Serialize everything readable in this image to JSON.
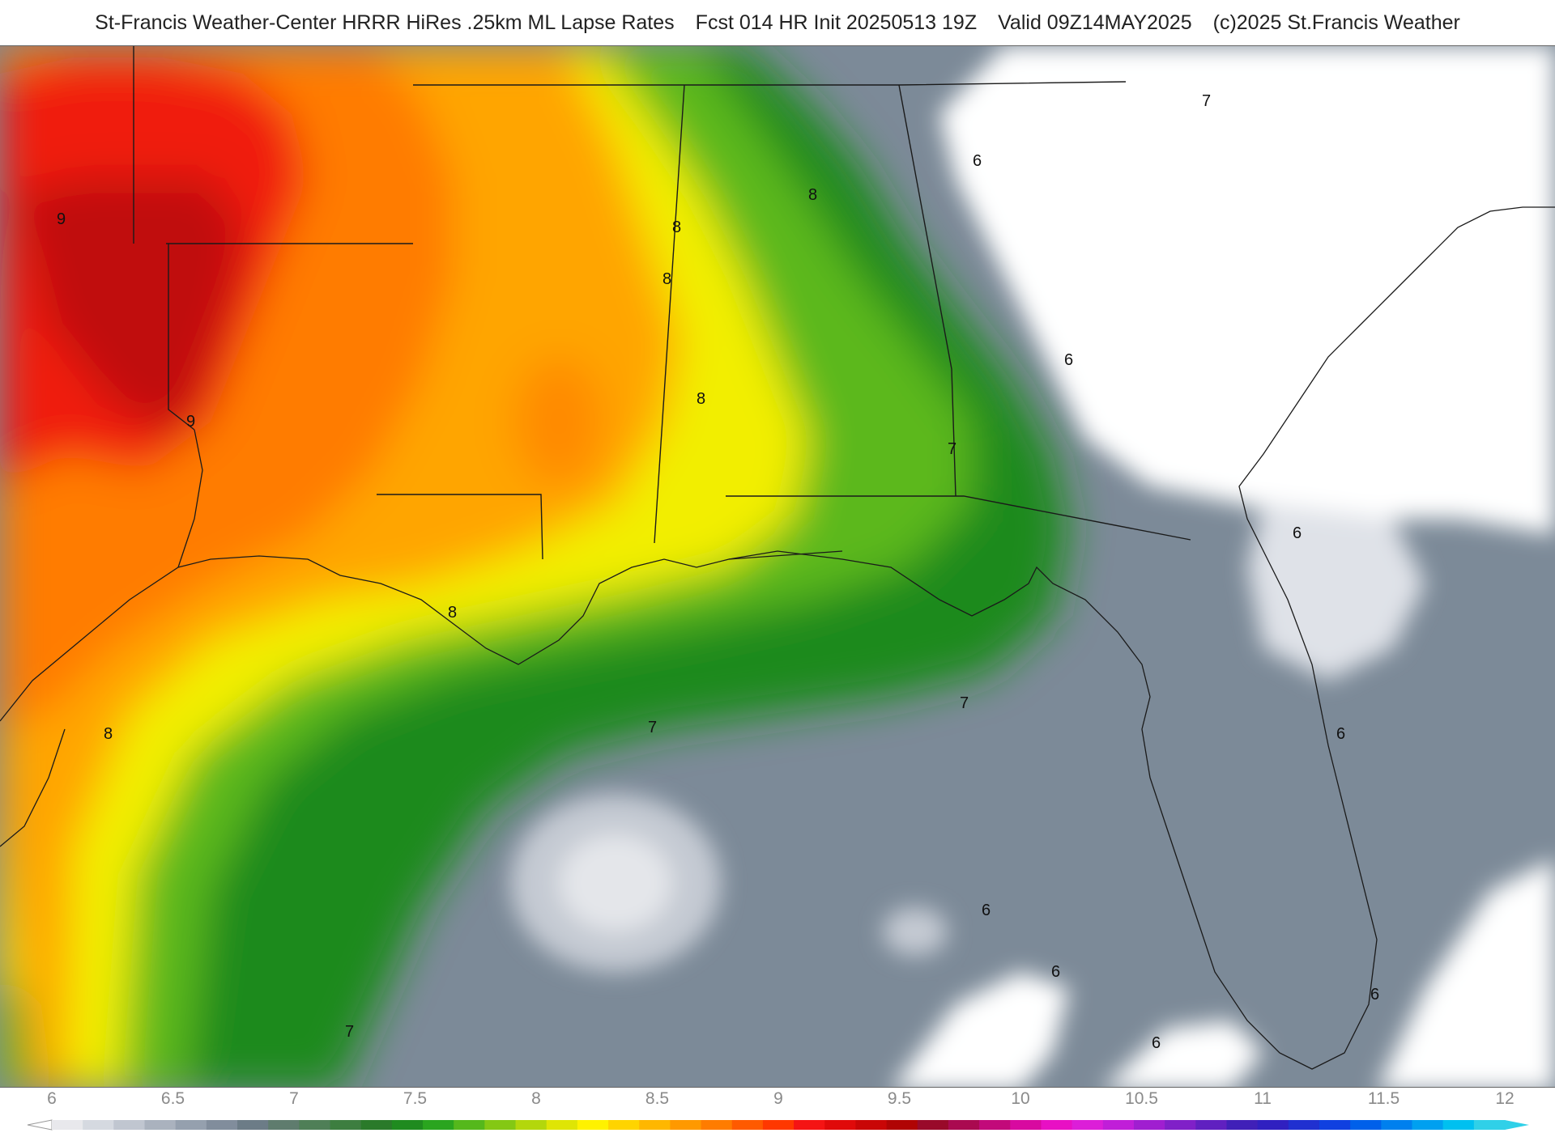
{
  "header": {
    "title": "St-Francis Weather-Center HRRR HiRes .25km ML Lapse Rates",
    "forecast": "Fcst 014 HR Init 20250513 19Z",
    "valid": "Valid 09Z14MAY2025",
    "copyright": "(c)2025 St.Francis Weather"
  },
  "contour_labels": [
    "9",
    "9",
    "8",
    "8",
    "8",
    "8",
    "8",
    "8",
    "7",
    "7",
    "7",
    "7",
    "7",
    "6",
    "6",
    "6",
    "6",
    "6",
    "6",
    "6",
    "6"
  ],
  "legend": {
    "ticks": [
      "6",
      "6.5",
      "7",
      "7.5",
      "8",
      "8.5",
      "9",
      "9.5",
      "10",
      "10.5",
      "11",
      "11.5",
      "12"
    ],
    "min": 6,
    "max": 12,
    "colors": [
      "#e8e8ec",
      "#d5d9e0",
      "#c0c6d0",
      "#aab2be",
      "#95a0ae",
      "#818d9c",
      "#6c7c87",
      "#5f7c6e",
      "#4f7f57",
      "#3d7e40",
      "#2a7a2a",
      "#1f8b1f",
      "#2aa51f",
      "#55b81c",
      "#84c814",
      "#b3d70c",
      "#dfe505",
      "#fff200",
      "#ffd400",
      "#ffb700",
      "#ff9900",
      "#ff7c00",
      "#ff5a00",
      "#ff3800",
      "#f51414",
      "#e00a0a",
      "#c90606",
      "#b00404",
      "#990a2a",
      "#aa0a50",
      "#c20a7a",
      "#d80aa0",
      "#e810c4",
      "#dc1ed8",
      "#c01ed8",
      "#a01ed0",
      "#8020c8",
      "#6020c0",
      "#4020b8",
      "#3020c0",
      "#2030d0",
      "#1040e0",
      "#0060ea",
      "#0080ee",
      "#00a0f0",
      "#00c0f0",
      "#30d0e8"
    ]
  }
}
